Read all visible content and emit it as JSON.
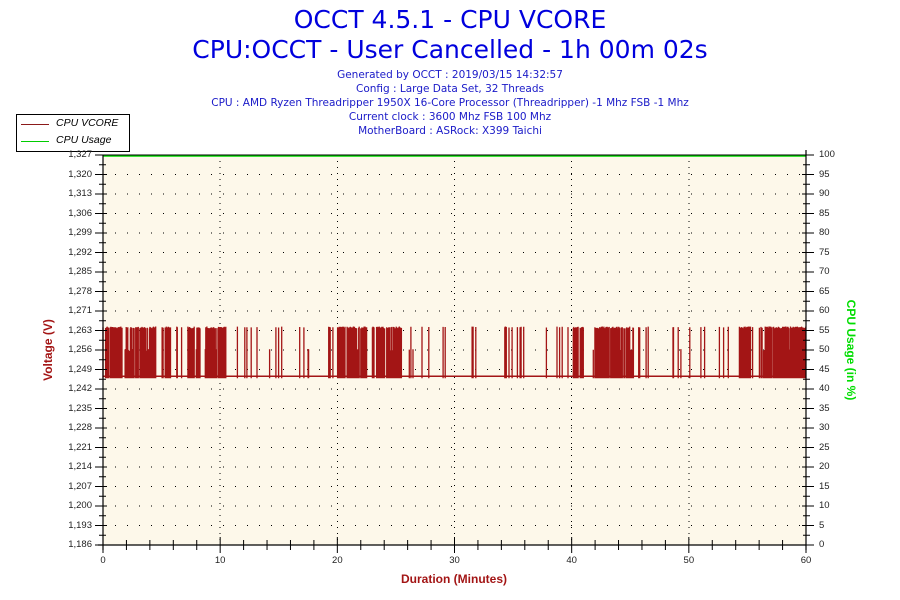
{
  "header": {
    "title_line1": "OCCT 4.5.1 - CPU VCORE",
    "title_line2": "CPU:OCCT - User Cancelled - 1h 00m 02s",
    "info_lines": [
      "Generated by OCCT : 2019/03/15 14:32:57",
      "Config : Large Data Set, 32 Threads",
      "CPU : AMD Ryzen Threadripper 1950X 16-Core Processor (Threadripper) -1 Mhz FSB -1 Mhz",
      "Current clock : 3600 Mhz FSB 100 Mhz",
      "MotherBoard : ASRock: X399 Taichi"
    ]
  },
  "legend": {
    "items": [
      {
        "label": "CPU VCORE",
        "color": "#8b1a1a"
      },
      {
        "label": "CPU Usage",
        "color": "#00cc00"
      }
    ]
  },
  "colors": {
    "plot_bg": "#fdf8ea",
    "vcore": "#a31515",
    "usage": "#00dd00",
    "title": "#0000dd",
    "left_axis_title": "#a31515",
    "right_axis_title": "#00dd00",
    "x_axis_title": "#a31515"
  },
  "chart_data": {
    "type": "line",
    "title": "OCCT 4.5.1 - CPU VCORE",
    "subtitle": "CPU:OCCT - User Cancelled - 1h 00m 02s",
    "xlabel": "Duration (Minutes)",
    "ylabel": "Voltage (V)",
    "y2label": "CPU Usage (in %)",
    "xlim": [
      0,
      60
    ],
    "ylim": [
      1.186,
      1.327
    ],
    "y2lim": [
      0,
      100
    ],
    "x_ticks": [
      "0",
      "10",
      "20",
      "30",
      "40",
      "50",
      "60"
    ],
    "y_ticks": [
      "1,327",
      "1,320",
      "1,313",
      "1,306",
      "1,299",
      "1,292",
      "1,285",
      "1,278",
      "1,271",
      "1,263",
      "1,256",
      "1,249",
      "1,242",
      "1,235",
      "1,228",
      "1,221",
      "1,214",
      "1,207",
      "1,200",
      "1,193",
      "1,186"
    ],
    "y2_ticks": [
      "100",
      "95",
      "90",
      "85",
      "80",
      "75",
      "70",
      "65",
      "60",
      "55",
      "50",
      "45",
      "40",
      "35",
      "30",
      "25",
      "20",
      "15",
      "10",
      "5",
      "0"
    ],
    "grid": "dotted",
    "legend_position": "top-left",
    "series": [
      {
        "name": "CPU VCORE",
        "axis": "left",
        "baseline_value": 1.247,
        "high_value": 1.265,
        "description": "Rapid oscillation between ~1.247 V and ~1.265 V; dense bursts from 0-4.5, 5-8, 10-10.5, 20-25.5, 40-45, 54-60 min; sparser spikes elsewhere",
        "burst_intervals_min": [
          [
            0.2,
            4.5
          ],
          [
            5.0,
            5.8
          ],
          [
            7.2,
            8.3
          ],
          [
            8.7,
            10.5
          ],
          [
            20.0,
            20.6
          ],
          [
            20.8,
            22.5
          ],
          [
            23.0,
            25.5
          ],
          [
            40.1,
            41.0
          ],
          [
            42.0,
            45.3
          ],
          [
            54.4,
            55.3
          ],
          [
            56.0,
            60.0
          ]
        ]
      },
      {
        "name": "CPU Usage",
        "axis": "right",
        "values_constant": 100
      }
    ]
  }
}
